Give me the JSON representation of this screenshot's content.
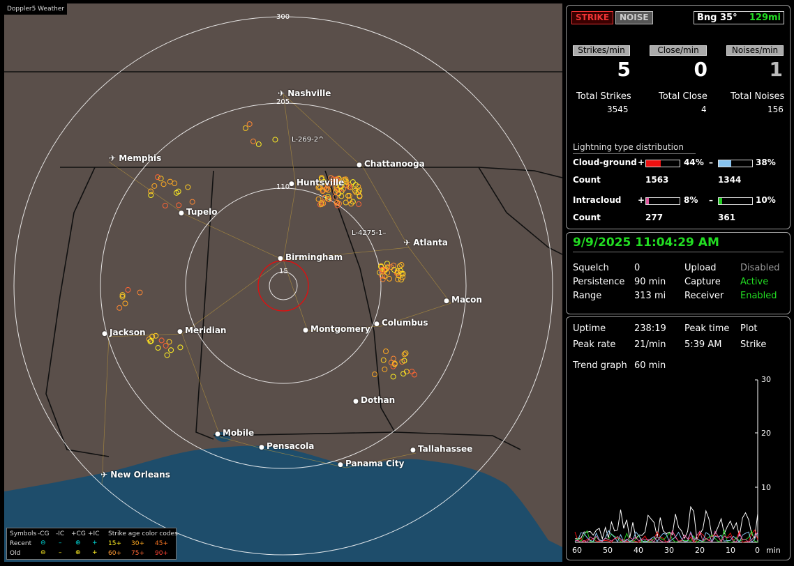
{
  "app_title": "Doppler5 Weather",
  "header": {
    "strike_label": "STRIKE",
    "noise_label": "NOISE",
    "bearing": "Bng 35°",
    "distance": "129mi"
  },
  "rates": {
    "strikes_min_label": "Strikes/min",
    "strikes_min": "5",
    "close_min_label": "Close/min",
    "close_min": "0",
    "noises_min_label": "Noises/min",
    "noises_min": "1"
  },
  "totals": {
    "strikes_label": "Total Strikes",
    "strikes": "3545",
    "close_label": "Total Close",
    "close": "4",
    "noises_label": "Total Noises",
    "noises": "156"
  },
  "distribution": {
    "title": "Lightning type distribution",
    "cg_label": "Cloud-ground",
    "cg_pos_pct": "44%",
    "cg_neg_pct": "38%",
    "cg_pos_frac": 0.44,
    "cg_neg_frac": 0.38,
    "count_label": "Count",
    "cg_pos_count": "1563",
    "cg_neg_count": "1344",
    "ic_label": "Intracloud",
    "ic_pos_pct": "8%",
    "ic_neg_pct": "10%",
    "ic_pos_frac": 0.08,
    "ic_neg_frac": 0.1,
    "ic_pos_count": "277",
    "ic_neg_count": "361",
    "plus": "+",
    "minus": "–",
    "colors": {
      "cg_pos": "#ee1111",
      "cg_neg": "#88c4f0",
      "ic_pos": "#e05aa0",
      "ic_neg": "#22cc22"
    }
  },
  "status": {
    "datetime": "9/9/2025 11:04:29 AM",
    "squelch_label": "Squelch",
    "squelch": "0",
    "persistence_label": "Persistence",
    "persistence": "90 min",
    "range_label": "Range",
    "range": "313 mi",
    "upload_label": "Upload",
    "upload": "Disabled",
    "capture_label": "Capture",
    "capture": "Active",
    "receiver_label": "Receiver",
    "receiver": "Enabled"
  },
  "stats": {
    "uptime_label": "Uptime",
    "uptime": "238:19",
    "peak_time_label": "Peak time",
    "peak_time": "5:39 AM",
    "plot_label": "Plot",
    "plot": "Strike",
    "peak_rate_label": "Peak rate",
    "peak_rate": "21/min",
    "trend_label": "Trend graph",
    "trend": "60 min"
  },
  "trend_graph": {
    "y_ticks": [
      "30",
      "20",
      "10"
    ],
    "x_ticks": [
      "60",
      "50",
      "40",
      "30",
      "20",
      "10",
      "0"
    ],
    "x_unit": "min"
  },
  "map": {
    "range_rings": [
      "300",
      "205",
      "110",
      "15"
    ],
    "cities": [
      {
        "name": "Nashville",
        "airport": true
      },
      {
        "name": "Memphis",
        "airport": true
      },
      {
        "name": "Chattanooga"
      },
      {
        "name": "Huntsville"
      },
      {
        "name": "Tupelo"
      },
      {
        "name": "Atlanta",
        "airport": true
      },
      {
        "name": "Birmingham"
      },
      {
        "name": "Macon"
      },
      {
        "name": "Jackson"
      },
      {
        "name": "Meridian"
      },
      {
        "name": "Montgomery"
      },
      {
        "name": "Columbus"
      },
      {
        "name": "Dothan"
      },
      {
        "name": "Mobile"
      },
      {
        "name": "Pensacola"
      },
      {
        "name": "Tallahassee"
      },
      {
        "name": "Panama City"
      },
      {
        "name": "New Orleans",
        "airport": true
      }
    ],
    "storm_labels": [
      "L-269-2^",
      "L-4275-1–"
    ]
  },
  "legend": {
    "symbols": "Symbols",
    "cg_neg": "-CG",
    "ic_neg": "-IC",
    "cg_pos": "+CG",
    "ic_pos": "+IC",
    "age": "Strike age color codes",
    "recent": "Recent",
    "old": "Old",
    "a15": "15+",
    "a30": "30+",
    "a45": "45+",
    "a60": "60+",
    "a75": "75+",
    "a90": "90+"
  }
}
